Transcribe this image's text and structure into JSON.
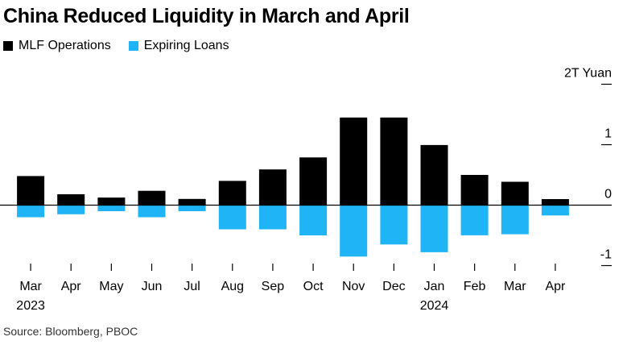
{
  "title": "China Reduced Liquidity in March and April",
  "legend": [
    {
      "label": "MLF Operations",
      "color": "#000000"
    },
    {
      "label": "Expiring Loans",
      "color": "#1fb4f5"
    }
  ],
  "source": "Source: Bloomberg, PBOC",
  "chart_data": {
    "type": "bar",
    "title": "China Reduced Liquidity in March and April",
    "unit_label": "2T Yuan",
    "categories": [
      "Mar",
      "Apr",
      "May",
      "Jun",
      "Jul",
      "Aug",
      "Sep",
      "Oct",
      "Nov",
      "Dec",
      "Jan",
      "Feb",
      "Mar",
      "Apr"
    ],
    "year_labels": [
      {
        "index": 0,
        "label": "2023"
      },
      {
        "index": 10,
        "label": "2024"
      }
    ],
    "series": [
      {
        "name": "MLF Operations",
        "color": "#000000",
        "values": [
          0.481,
          0.18,
          0.125,
          0.237,
          0.103,
          0.401,
          0.591,
          0.789,
          1.45,
          1.45,
          0.995,
          0.5,
          0.387,
          0.1
        ]
      },
      {
        "name": "Expiring Loans",
        "color": "#1fb4f5",
        "values": [
          -0.2,
          -0.15,
          -0.1,
          -0.2,
          -0.1,
          -0.4,
          -0.4,
          -0.5,
          -0.85,
          -0.65,
          -0.779,
          -0.499,
          -0.481,
          -0.17
        ]
      }
    ],
    "ylim": [
      -1,
      2
    ],
    "yticks": [
      2,
      1,
      0,
      -1
    ],
    "ytick_labels": [
      "2T Yuan",
      "1",
      "0",
      "-1"
    ],
    "grid": false,
    "legend_position": "top-left"
  }
}
